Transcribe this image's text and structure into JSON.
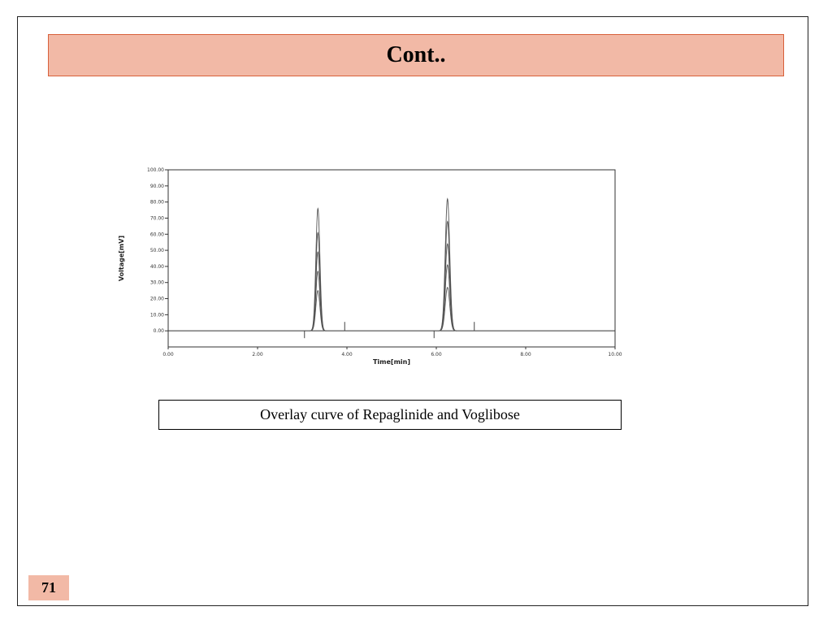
{
  "slide": {
    "title": "Cont..",
    "caption": "Overlay curve of Repaglinide and Voglibose",
    "page_number": "71"
  },
  "colors": {
    "title_fill": "#f2b9a6",
    "title_border": "#d8603a",
    "trace": "#555555"
  },
  "chart_data": {
    "type": "line",
    "xlabel": "Time[min]",
    "ylabel": "Voltage[mV]",
    "xlim": [
      0,
      10
    ],
    "ylim": [
      -10,
      100
    ],
    "x_ticks": [
      "0.00",
      "2.00",
      "4.00",
      "6.00",
      "8.00",
      "10.00"
    ],
    "y_ticks": [
      "0.00",
      "10.00",
      "20.00",
      "30.00",
      "40.00",
      "50.00",
      "60.00",
      "70.00",
      "80.00",
      "90.00",
      "100.00"
    ],
    "grid": false,
    "peaks": [
      {
        "center": 3.35,
        "width": 0.045,
        "heights": [
          76,
          61,
          49,
          37,
          25
        ]
      },
      {
        "center": 6.25,
        "width": 0.05,
        "heights": [
          82,
          68,
          54,
          41,
          27
        ]
      }
    ],
    "integration_markers": [
      3.05,
      3.95,
      5.95,
      6.85
    ]
  }
}
